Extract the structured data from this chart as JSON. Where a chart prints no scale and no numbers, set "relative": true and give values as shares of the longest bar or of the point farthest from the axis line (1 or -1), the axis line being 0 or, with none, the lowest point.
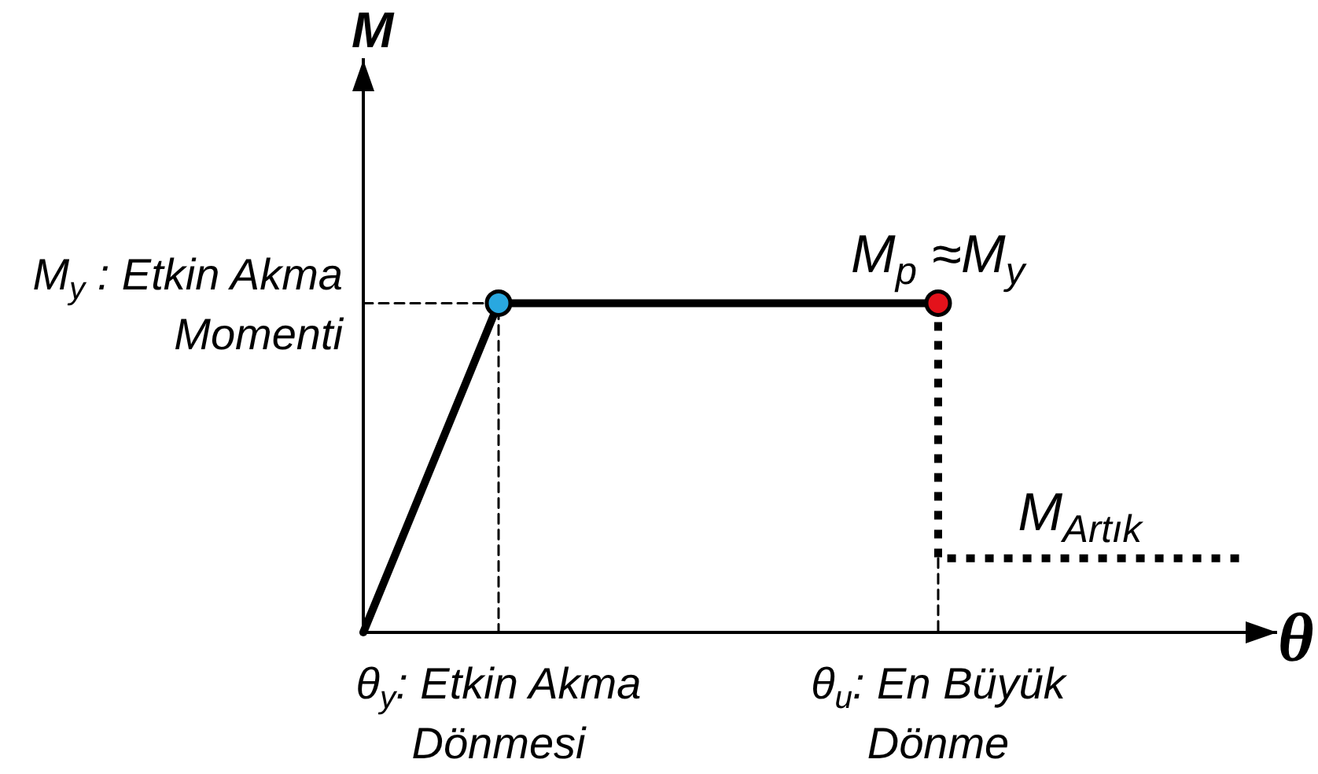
{
  "chart_data": {
    "type": "line",
    "relative": true,
    "xlabel": "θ",
    "ylabel": "M",
    "marker": "none",
    "tick_labels": "x",
    "categories": [
      null,
      null,
      null,
      null,
      "θ$_{y}$: Etkin Akma Dönmesi",
      null,
      null,
      null,
      null,
      null,
      null,
      null,
      null,
      null,
      null,
      null,
      null,
      "θ$_{u}$: En Büyük Dönme",
      null,
      null,
      null,
      null,
      null,
      null,
      null,
      null,
      null,
      null
    ],
    "series": [
      {
        "type": "step",
        "color": "#000000",
        "line_style": "dashed",
        "values": [
          1,
          1,
          1,
          1,
          1,
          0,
          null,
          null,
          null,
          null,
          null,
          null,
          null,
          null,
          null,
          null,
          null,
          null,
          null,
          null,
          null,
          null,
          null,
          null,
          null,
          null,
          null,
          null
        ]
      },
      {
        "type": "step",
        "color": "#000000",
        "line_style": "dashed",
        "values": [
          null,
          null,
          null,
          null,
          null,
          null,
          null,
          null,
          null,
          null,
          null,
          null,
          null,
          null,
          null,
          null,
          null,
          0.225,
          0,
          null,
          null,
          null,
          null,
          null,
          null,
          null,
          null,
          null
        ]
      },
      {
        "color": "#000000",
        "line_style": "solid",
        "values": [
          0,
          0.25,
          0.5,
          0.75,
          1,
          1,
          1,
          1,
          1,
          1,
          1,
          1,
          1,
          1,
          1,
          1,
          1,
          1,
          null,
          null,
          null,
          null,
          null,
          null,
          null,
          null,
          null,
          null
        ]
      },
      {
        "type": "step",
        "color": "#000000",
        "line_style": "dotted",
        "values": [
          null,
          null,
          null,
          null,
          null,
          null,
          null,
          null,
          null,
          null,
          null,
          null,
          null,
          null,
          null,
          null,
          null,
          1,
          0.225,
          0.225,
          0.225,
          0.225,
          0.225,
          0.225,
          0.225,
          0.225,
          0.225,
          null
        ]
      },
      {
        "type": "scatter",
        "colors": [
          "#29a8e0",
          "#e3121b"
        ],
        "marker": "circle",
        "x": [
          "θ$_{y}$: Etkin Akma Dönmesi",
          "θ$_{u}$: En Büyük Dönme"
        ],
        "values": [
          1,
          1
        ]
      }
    ],
    "annotations": [
      "M$_{y}$ : Etkin Akma Momenti",
      "M$_{p}$ ≈M$_{y}$",
      "M$_{Artık}$"
    ]
  }
}
